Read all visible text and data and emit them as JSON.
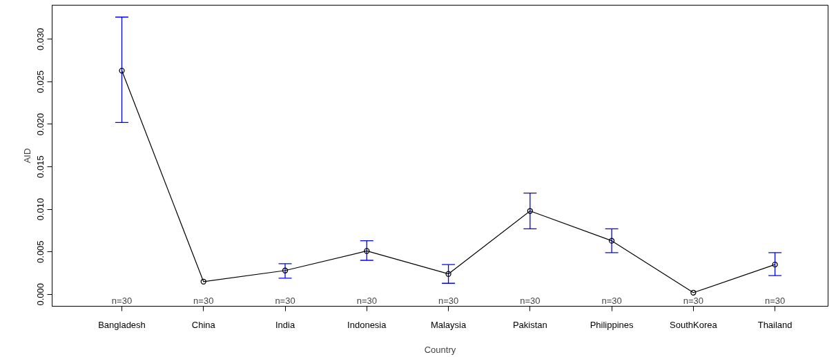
{
  "chart_data": {
    "type": "line",
    "xlabel": "Country",
    "ylabel": "AID",
    "categories": [
      "Bangladesh",
      "China",
      "India",
      "Indonesia",
      "Malaysia",
      "Pakistan",
      "Philippines",
      "SouthKorea",
      "Thailand"
    ],
    "series": [
      {
        "color": "#000000",
        "values": [
          0.0263,
          0.0015,
          0.0028,
          0.0051,
          0.0024,
          0.0098,
          0.0063,
          0.0002,
          0.0035
        ],
        "errors": [
          [
            0.0202,
            0.0326
          ],
          null,
          [
            0.0019,
            0.0036
          ],
          [
            0.004,
            0.0063
          ],
          [
            0.0013,
            0.0035
          ],
          [
            0.0077,
            0.0119
          ],
          [
            0.0049,
            0.0077
          ],
          null,
          [
            0.0022,
            0.0049
          ]
        ]
      }
    ],
    "ylim": [
      -0.0014,
      0.034
    ],
    "yticks": [
      {
        "value": 0,
        "label": "0.000"
      },
      0.005,
      {
        "value": 0.01,
        "label": "0.010"
      },
      0.015,
      {
        "value": 0.02,
        "label": "0.020"
      },
      0.025,
      {
        "value": 0.03,
        "label": "0.030"
      }
    ],
    "marker": "circle",
    "line_style": "solid",
    "grid": false,
    "annotations": [
      "n=30",
      "n=30",
      "n=30",
      "n=30",
      "n=30",
      "n=30",
      "n=30",
      "n=30",
      "n=30"
    ]
  }
}
